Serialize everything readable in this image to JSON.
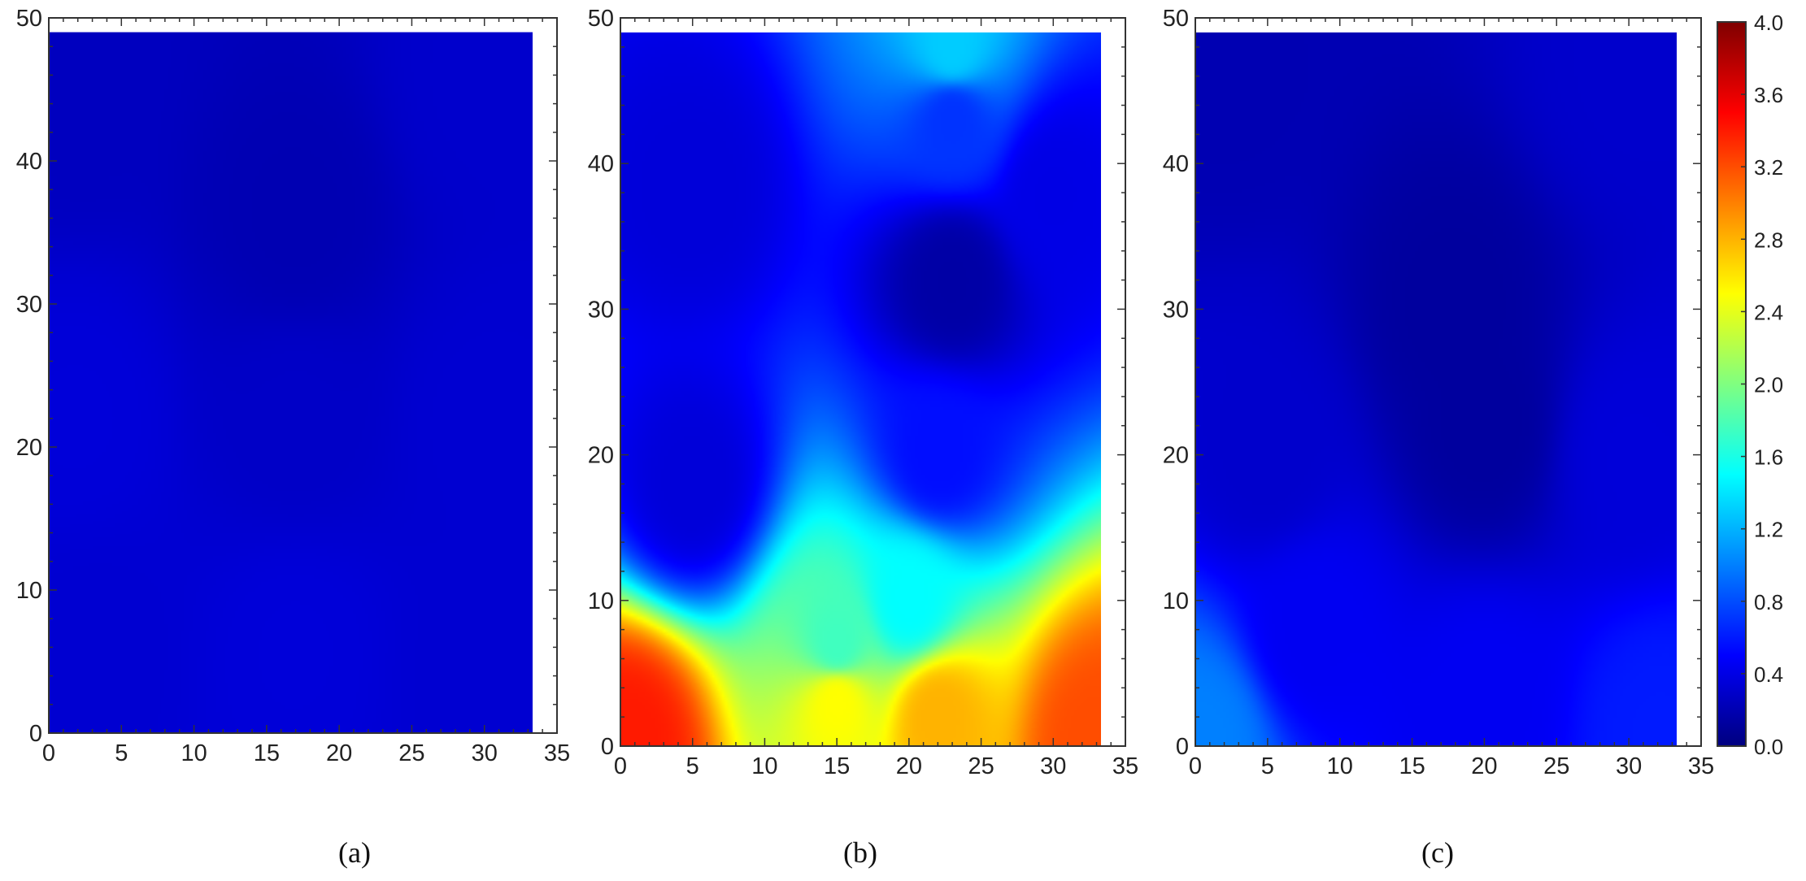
{
  "chart_data": [
    {
      "type": "heatmap",
      "panel_label": "(a)",
      "title": "",
      "xlabel": "",
      "ylabel": "",
      "xlim": [
        0,
        35
      ],
      "ylim": [
        0,
        50
      ],
      "xticks": [
        "0",
        "5",
        "10",
        "15",
        "20",
        "25",
        "30",
        "35"
      ],
      "yticks": [
        "0",
        "10",
        "20",
        "30",
        "40",
        "50"
      ],
      "domain_extent": {
        "x": [
          0,
          33.3
        ],
        "y": [
          0,
          49
        ]
      },
      "field_samples": [
        {
          "x": 2,
          "y": 45,
          "value": 0.25
        },
        {
          "x": 17,
          "y": 36,
          "value": 0.2
        },
        {
          "x": 30,
          "y": 45,
          "value": 0.3
        },
        {
          "x": 2,
          "y": 22,
          "value": 0.35
        },
        {
          "x": 17,
          "y": 22,
          "value": 0.28
        },
        {
          "x": 30,
          "y": 22,
          "value": 0.32
        },
        {
          "x": 3,
          "y": 6,
          "value": 0.32
        },
        {
          "x": 17,
          "y": 6,
          "value": 0.35
        },
        {
          "x": 30,
          "y": 4,
          "value": 0.32
        }
      ]
    },
    {
      "type": "heatmap",
      "panel_label": "(b)",
      "title": "",
      "xlabel": "",
      "ylabel": "",
      "xlim": [
        0,
        35
      ],
      "ylim": [
        0,
        50
      ],
      "xticks": [
        "0",
        "5",
        "10",
        "15",
        "20",
        "25",
        "30",
        "35"
      ],
      "yticks": [
        "0",
        "10",
        "20",
        "30",
        "40",
        "50"
      ],
      "domain_extent": {
        "x": [
          0,
          33.3
        ],
        "y": [
          0,
          49
        ]
      },
      "field_samples": [
        {
          "x": 23,
          "y": 48,
          "value": 1.3
        },
        {
          "x": 23,
          "y": 43,
          "value": 0.7
        },
        {
          "x": 23,
          "y": 32,
          "value": 0.15
        },
        {
          "x": 5,
          "y": 38,
          "value": 0.35
        },
        {
          "x": 30,
          "y": 38,
          "value": 0.4
        },
        {
          "x": 22,
          "y": 20,
          "value": 0.55
        },
        {
          "x": 5,
          "y": 18,
          "value": 0.35
        },
        {
          "x": 20,
          "y": 10,
          "value": 1.5
        },
        {
          "x": 15,
          "y": 7,
          "value": 1.75
        },
        {
          "x": 15,
          "y": 3,
          "value": 2.5
        },
        {
          "x": 22,
          "y": 2,
          "value": 2.8
        },
        {
          "x": 0.5,
          "y": 0.5,
          "value": 3.4
        },
        {
          "x": 33,
          "y": 0.5,
          "value": 3.2
        }
      ]
    },
    {
      "type": "heatmap",
      "panel_label": "(c)",
      "title": "",
      "xlabel": "",
      "ylabel": "",
      "xlim": [
        0,
        35
      ],
      "ylim": [
        0,
        50
      ],
      "xticks": [
        "0",
        "5",
        "10",
        "15",
        "20",
        "25",
        "30",
        "35"
      ],
      "yticks": [
        "0",
        "10",
        "20",
        "30",
        "40",
        "50"
      ],
      "domain_extent": {
        "x": [
          0,
          33.3
        ],
        "y": [
          0,
          49
        ]
      },
      "field_samples": [
        {
          "x": 2,
          "y": 46,
          "value": 0.2
        },
        {
          "x": 18,
          "y": 30,
          "value": 0.12
        },
        {
          "x": 30,
          "y": 46,
          "value": 0.3
        },
        {
          "x": 20,
          "y": 22,
          "value": 0.12
        },
        {
          "x": 5,
          "y": 20,
          "value": 0.3
        },
        {
          "x": 30,
          "y": 20,
          "value": 0.35
        },
        {
          "x": 8,
          "y": 8,
          "value": 0.45
        },
        {
          "x": 0.5,
          "y": 0.5,
          "value": 1.0
        },
        {
          "x": 20,
          "y": 3,
          "value": 0.45
        },
        {
          "x": 32,
          "y": 1,
          "value": 0.6
        }
      ]
    }
  ],
  "colorbar": {
    "range": [
      0,
      4.0
    ],
    "tick_labels": [
      "0.0",
      "0.4",
      "0.8",
      "1.2",
      "1.6",
      "2.0",
      "2.4",
      "2.8",
      "3.2",
      "3.6",
      "4.0"
    ],
    "colormap": "jet",
    "colormap_stops": [
      "#00007f",
      "#0000ff",
      "#0080ff",
      "#00ffff",
      "#80ff80",
      "#ffff00",
      "#ff8000",
      "#ff0000",
      "#7f0000"
    ]
  },
  "captions": [
    "(a)",
    "(b)",
    "(c)"
  ]
}
